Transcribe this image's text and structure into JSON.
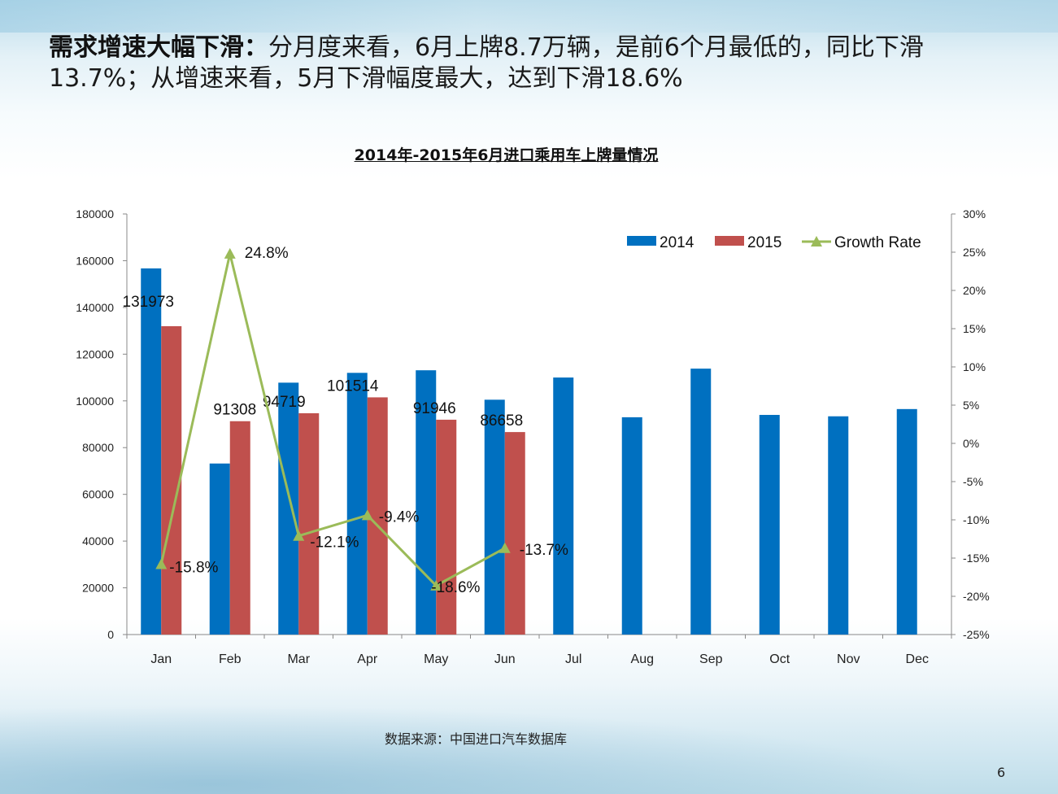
{
  "header": {
    "headline_lead": "需求增速大幅下滑：",
    "headline_rest_line1": "分月度来看，6月上牌8.7万辆，是前6个月最低的，同比下滑",
    "headline_rest_line2": "13.7%；从增速来看，5月下滑幅度最大，达到下滑18.6%"
  },
  "chart_data": {
    "type": "bar",
    "title": "2014年-2015年6月进口乘用车上牌量情况",
    "categories": [
      "Jan",
      "Feb",
      "Mar",
      "Apr",
      "May",
      "Jun",
      "Jul",
      "Aug",
      "Sep",
      "Oct",
      "Nov",
      "Dec"
    ],
    "series": [
      {
        "name": "2014",
        "type": "bar",
        "axis": "left",
        "color": "#0070c0",
        "values": [
          156700,
          73200,
          107800,
          112000,
          113100,
          100500,
          110000,
          93000,
          113800,
          94000,
          93400,
          96500
        ]
      },
      {
        "name": "2015",
        "type": "bar",
        "axis": "left",
        "color": "#c0504d",
        "values": [
          131973,
          91308,
          94719,
          101514,
          91946,
          86658,
          null,
          null,
          null,
          null,
          null,
          null
        ],
        "data_labels": [
          "131973",
          "91308",
          "94719",
          "101514",
          "91946",
          "86658"
        ]
      },
      {
        "name": "Growth Rate",
        "type": "line",
        "axis": "right",
        "color": "#9bbb59",
        "marker": "triangle",
        "values": [
          -15.8,
          24.8,
          -12.1,
          -9.4,
          -18.6,
          -13.7,
          null,
          null,
          null,
          null,
          null,
          null
        ],
        "data_labels": [
          "-15.8%",
          "24.8%",
          "-12.1%",
          "-9.4%",
          "-18.6%",
          "-13.7%"
        ]
      }
    ],
    "left_axis": {
      "min": 0,
      "max": 180000,
      "step": 20000,
      "tick_labels": [
        "0",
        "20000",
        "40000",
        "60000",
        "80000",
        "100000",
        "120000",
        "140000",
        "160000",
        "180000"
      ]
    },
    "right_axis": {
      "min": -25,
      "max": 30,
      "step": 5,
      "tick_labels": [
        "-25%",
        "-20%",
        "-15%",
        "-10%",
        "-5%",
        "0%",
        "5%",
        "10%",
        "15%",
        "20%",
        "25%",
        "30%"
      ]
    },
    "legend": {
      "position": "top-right",
      "entries": [
        "2014",
        "2015",
        "Growth Rate"
      ]
    },
    "grid": false
  },
  "footer": {
    "source": "数据来源：中国进口汽车数据库",
    "page_number": "6"
  }
}
